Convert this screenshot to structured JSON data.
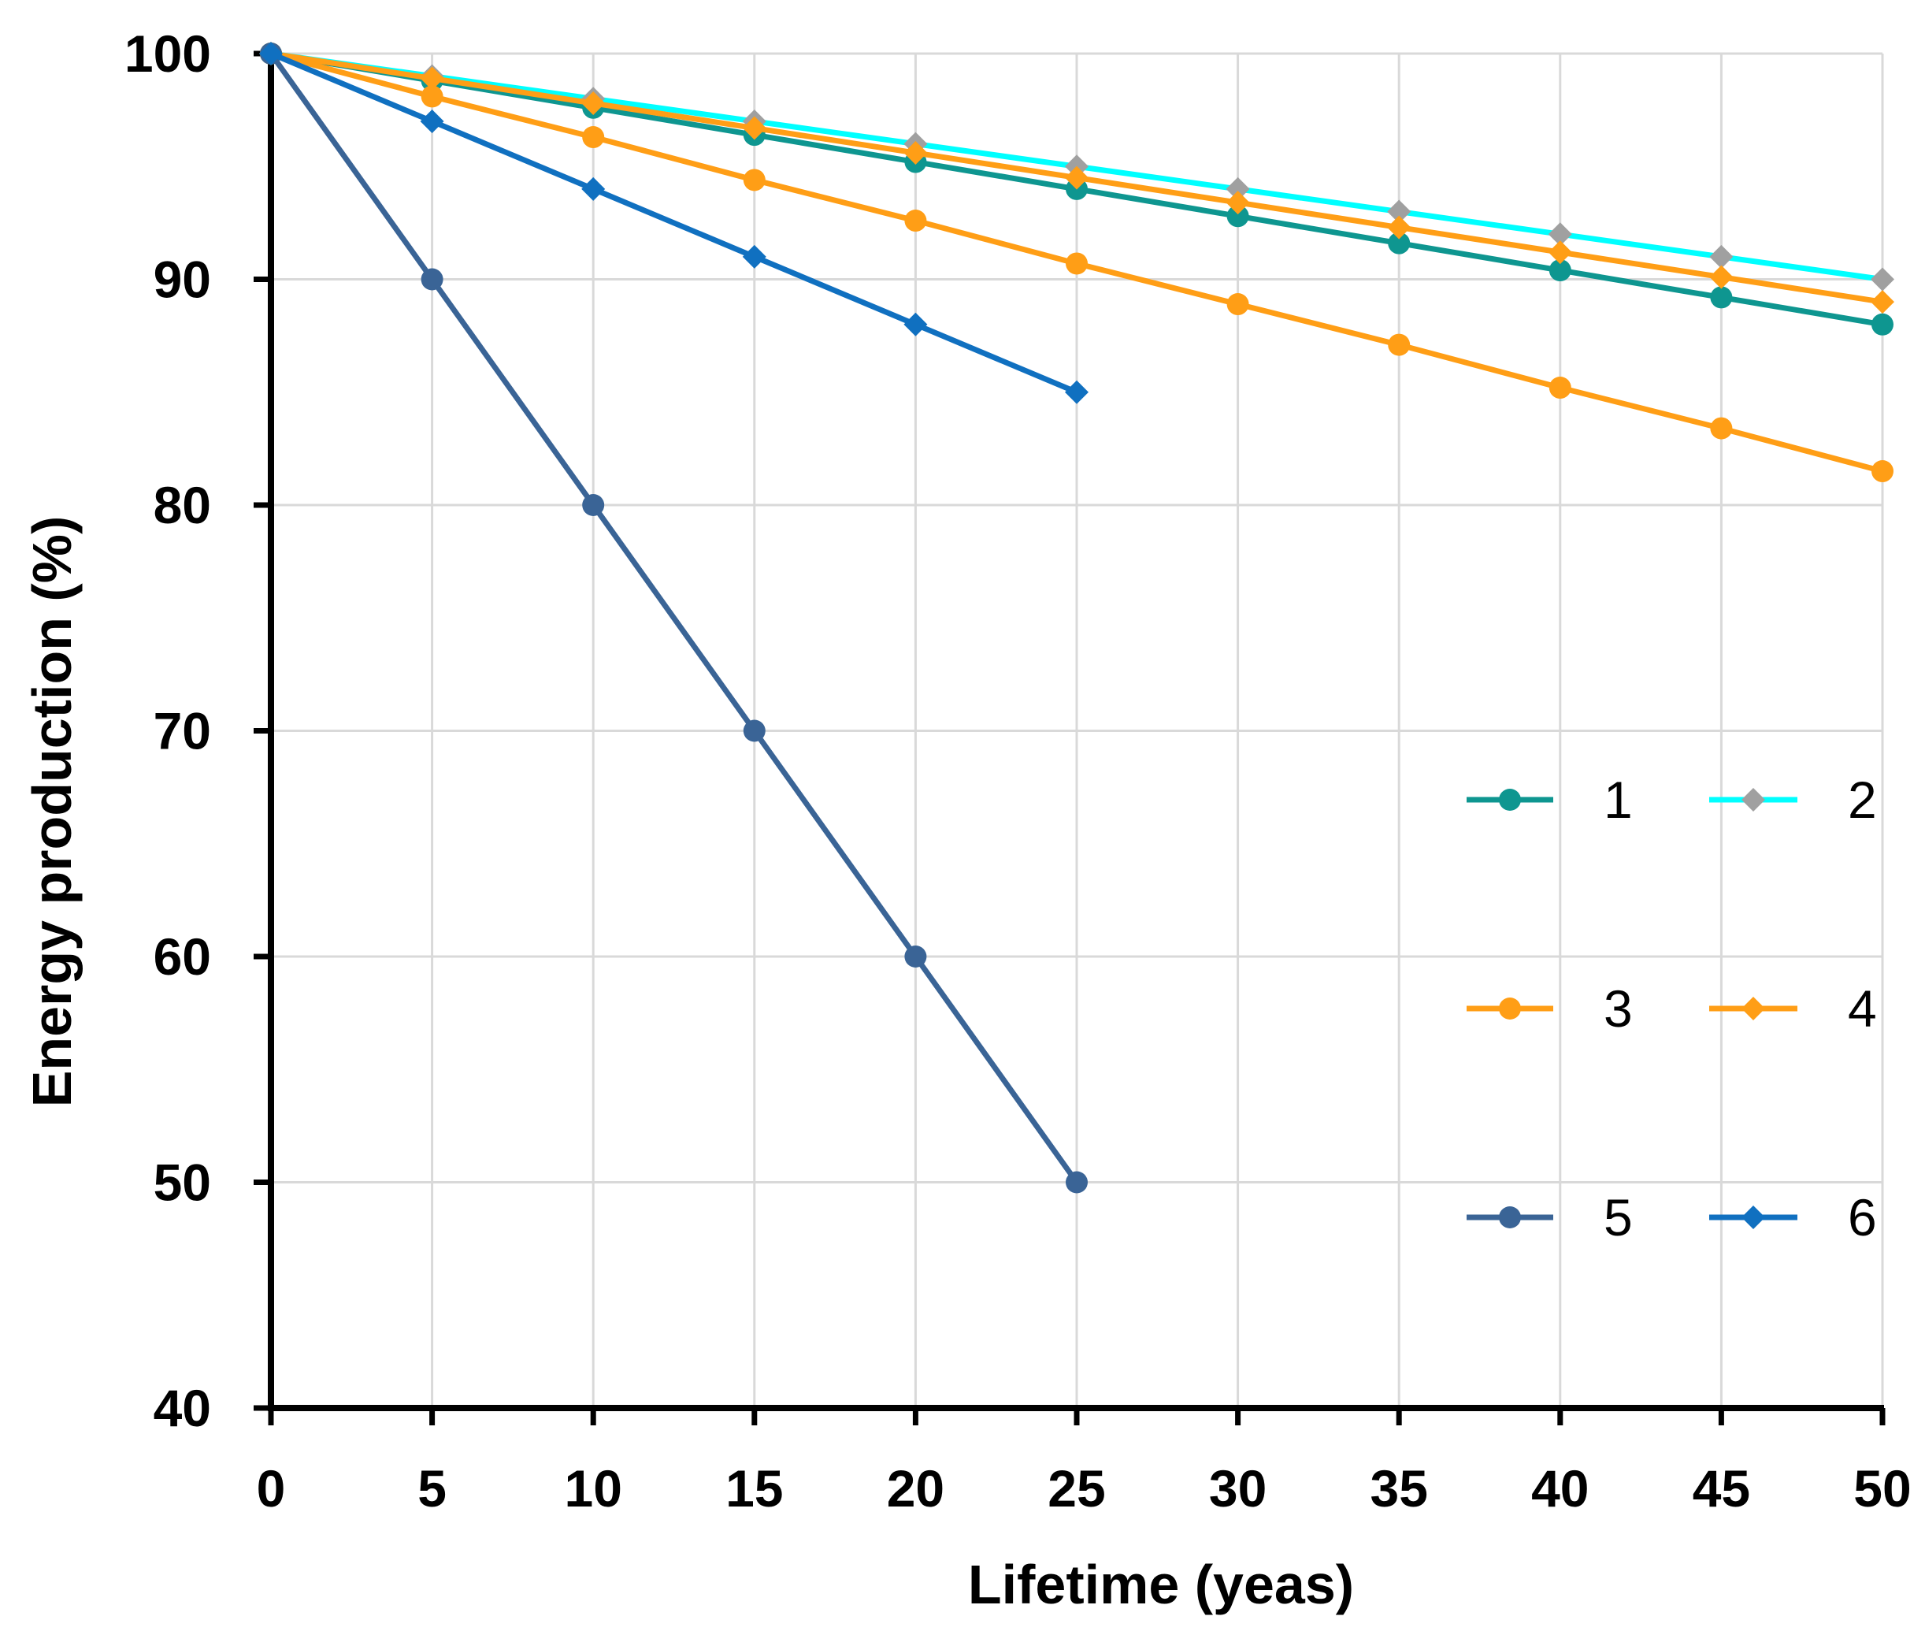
{
  "chart_data": {
    "type": "line",
    "title": "",
    "xlabel": "Lifetime (yeas)",
    "ylabel": "Energy production (%)",
    "xlim": [
      0,
      50
    ],
    "ylim": [
      40,
      100
    ],
    "xticks": [
      0,
      5,
      10,
      15,
      20,
      25,
      30,
      35,
      40,
      45,
      50
    ],
    "yticks": [
      40,
      50,
      60,
      70,
      80,
      90,
      100
    ],
    "grid": true,
    "legend_position": "right",
    "series": [
      {
        "name": "1",
        "color": "#0E9690",
        "marker": "circle",
        "x": [
          0,
          5,
          10,
          15,
          20,
          25,
          30,
          35,
          40,
          45,
          50
        ],
        "values": [
          100,
          98.8,
          97.6,
          96.4,
          95.2,
          94.0,
          92.8,
          91.6,
          90.4,
          89.2,
          88.0
        ]
      },
      {
        "name": "2",
        "color": "#00FFFF",
        "marker": "diamond",
        "marker_color": "#A0A0A0",
        "x": [
          0,
          5,
          10,
          15,
          20,
          25,
          30,
          35,
          40,
          45,
          50
        ],
        "values": [
          100,
          99,
          98,
          97,
          96,
          95,
          94,
          93,
          92,
          91,
          90
        ]
      },
      {
        "name": "3",
        "color": "#FF9E16",
        "marker": "circle",
        "x": [
          0,
          5,
          10,
          15,
          20,
          25,
          30,
          35,
          40,
          45,
          50
        ],
        "values": [
          100,
          98.1,
          96.3,
          94.4,
          92.6,
          90.7,
          88.9,
          87.1,
          85.2,
          83.4,
          81.5
        ]
      },
      {
        "name": "4",
        "color": "#FF9E16",
        "marker": "diamond",
        "x": [
          0,
          5,
          10,
          15,
          20,
          25,
          30,
          35,
          40,
          45,
          50
        ],
        "values": [
          100,
          98.9,
          97.8,
          96.7,
          95.6,
          94.5,
          93.4,
          92.3,
          91.2,
          90.1,
          89.0
        ]
      },
      {
        "name": "5",
        "color": "#3A6496",
        "marker": "circle",
        "x": [
          0,
          5,
          10,
          15,
          20,
          25
        ],
        "values": [
          100,
          90,
          80,
          70,
          60,
          50
        ]
      },
      {
        "name": "6",
        "color": "#1070C0",
        "marker": "diamond",
        "x": [
          0,
          5,
          10,
          15,
          20,
          25
        ],
        "values": [
          100,
          97,
          94,
          91,
          88,
          85
        ]
      }
    ]
  }
}
